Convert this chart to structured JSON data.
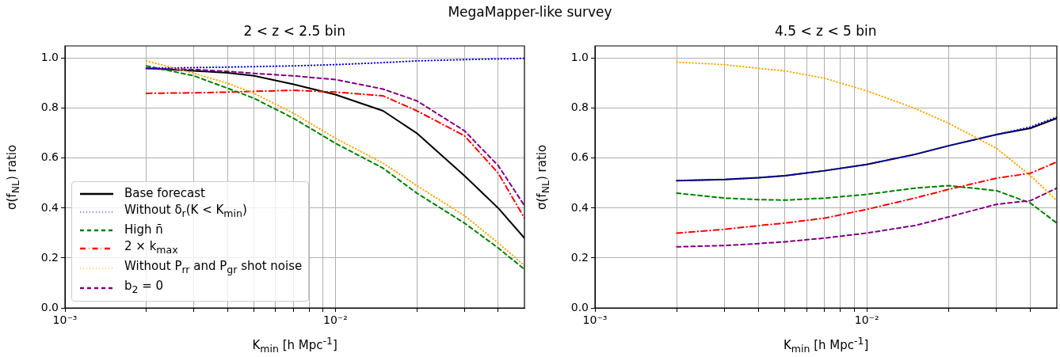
{
  "chart_data": [
    {
      "type": "line",
      "title": "2 < z < 2.5 bin",
      "xlabel": "K$_{min}$  [h Mpc$^{-1}$]",
      "ylabel": "σ(f$_{NL}$) ratio",
      "annotations": [
        "MegaMapper-like survey"
      ],
      "x": [
        0.002,
        0.003,
        0.004,
        0.005,
        0.007,
        0.01,
        0.015,
        0.02,
        0.03,
        0.04,
        0.05
      ],
      "series": [
        {
          "name": "Base forecast",
          "color": "#000000",
          "line_style": "solid",
          "values": [
            0.96,
            0.95,
            0.942,
            0.93,
            0.896,
            0.855,
            0.79,
            0.7,
            0.53,
            0.4,
            0.28
          ]
        },
        {
          "name": "Without δ$_{r}$(K < K$_{min}$)",
          "color": "#0000ff",
          "line_style": "dotted",
          "values": [
            0.96,
            0.963,
            0.965,
            0.967,
            0.97,
            0.975,
            0.983,
            0.99,
            0.995,
            0.998,
            1.0
          ]
        },
        {
          "name": "High n̄",
          "color": "#008000",
          "line_style": "dashed",
          "values": [
            0.97,
            0.93,
            0.88,
            0.84,
            0.76,
            0.66,
            0.56,
            0.46,
            0.34,
            0.24,
            0.155
          ]
        },
        {
          "name": "2 × k$_{max}$",
          "color": "#ff0000",
          "line_style": "dashdot",
          "values": [
            0.86,
            0.862,
            0.865,
            0.868,
            0.872,
            0.865,
            0.85,
            0.79,
            0.69,
            0.54,
            0.36
          ]
        },
        {
          "name": "Without P$_{rr}$ and P$_{gr}$ shot noise",
          "color": "#ffa500",
          "line_style": "dotted",
          "values": [
            0.99,
            0.94,
            0.9,
            0.86,
            0.78,
            0.68,
            0.58,
            0.49,
            0.37,
            0.26,
            0.17
          ]
        },
        {
          "name": "b$_{2}$ = 0",
          "color": "#800080",
          "line_style": "dashed",
          "values": [
            0.96,
            0.955,
            0.948,
            0.94,
            0.93,
            0.915,
            0.877,
            0.83,
            0.71,
            0.57,
            0.41
          ]
        }
      ],
      "log": "x",
      "xlim": [
        0.001,
        0.05
      ],
      "ylim": [
        0,
        1.05
      ],
      "xticks": [
        {
          "value": 0.001,
          "label": "10⁻³"
        },
        {
          "value": 0.002,
          "label": null
        },
        {
          "value": 0.003,
          "label": null
        },
        {
          "value": 0.004,
          "label": null
        },
        {
          "value": 0.005,
          "label": null
        },
        {
          "value": 0.006,
          "label": null
        },
        {
          "value": 0.007,
          "label": null
        },
        {
          "value": 0.008,
          "label": null
        },
        {
          "value": 0.009,
          "label": null
        },
        {
          "value": 0.01,
          "label": "10⁻²"
        },
        {
          "value": 0.02,
          "label": null
        },
        {
          "value": 0.03,
          "label": null
        },
        {
          "value": 0.04,
          "label": null
        }
      ],
      "yticks": [
        {
          "value": 0,
          "label": "0.0"
        },
        {
          "value": 0.2,
          "label": "0.2"
        },
        {
          "value": 0.4,
          "label": "0.4"
        },
        {
          "value": 0.6,
          "label": "0.6"
        },
        {
          "value": 0.8,
          "label": "0.8"
        },
        {
          "value": 1,
          "label": "1.0"
        }
      ],
      "grid": true,
      "legend": "bottom left"
    },
    {
      "type": "line",
      "title": "4.5 < z < 5 bin",
      "xlabel": "K$_{min}$  [h Mpc$^{-1}$]",
      "ylabel": "σ(f$_{NL}$) ratio",
      "x": [
        0.002,
        0.003,
        0.004,
        0.005,
        0.007,
        0.01,
        0.015,
        0.02,
        0.03,
        0.04,
        0.05
      ],
      "series": [
        {
          "color": "#000000",
          "line_style": "solid",
          "values": [
            0.51,
            0.515,
            0.522,
            0.53,
            0.55,
            0.575,
            0.615,
            0.65,
            0.695,
            0.72,
            0.76
          ]
        },
        {
          "color": "#0000ff",
          "line_style": "dotted",
          "values": [
            0.51,
            0.515,
            0.522,
            0.53,
            0.55,
            0.575,
            0.615,
            0.65,
            0.695,
            0.725,
            0.765
          ]
        },
        {
          "color": "#008000",
          "line_style": "dashed",
          "values": [
            0.46,
            0.44,
            0.434,
            0.432,
            0.44,
            0.455,
            0.48,
            0.49,
            0.47,
            0.42,
            0.34
          ]
        },
        {
          "color": "#ff0000",
          "line_style": "dashdot",
          "values": [
            0.3,
            0.315,
            0.33,
            0.34,
            0.36,
            0.395,
            0.44,
            0.475,
            0.52,
            0.54,
            0.585
          ]
        },
        {
          "color": "#ffa500",
          "line_style": "dotted",
          "values": [
            0.985,
            0.975,
            0.96,
            0.95,
            0.92,
            0.87,
            0.8,
            0.74,
            0.64,
            0.53,
            0.43
          ]
        },
        {
          "color": "#800080",
          "line_style": "dashed",
          "values": [
            0.245,
            0.25,
            0.258,
            0.265,
            0.28,
            0.3,
            0.33,
            0.365,
            0.415,
            0.43,
            0.48
          ]
        }
      ],
      "log": "x",
      "xlim": [
        0.001,
        0.05
      ],
      "ylim": [
        0,
        1.05
      ],
      "xticks": [
        {
          "value": 0.001,
          "label": "10⁻³"
        },
        {
          "value": 0.002,
          "label": null
        },
        {
          "value": 0.003,
          "label": null
        },
        {
          "value": 0.004,
          "label": null
        },
        {
          "value": 0.005,
          "label": null
        },
        {
          "value": 0.006,
          "label": null
        },
        {
          "value": 0.007,
          "label": null
        },
        {
          "value": 0.008,
          "label": null
        },
        {
          "value": 0.009,
          "label": null
        },
        {
          "value": 0.01,
          "label": "10⁻²"
        },
        {
          "value": 0.02,
          "label": null
        },
        {
          "value": 0.03,
          "label": null
        },
        {
          "value": 0.04,
          "label": null
        }
      ],
      "yticks": [
        {
          "value": 0,
          "label": "0.0"
        },
        {
          "value": 0.2,
          "label": "0.2"
        },
        {
          "value": 0.4,
          "label": "0.4"
        },
        {
          "value": 0.6,
          "label": "0.6"
        },
        {
          "value": 0.8,
          "label": "0.8"
        },
        {
          "value": 1,
          "label": "1.0"
        }
      ],
      "grid": true
    }
  ]
}
